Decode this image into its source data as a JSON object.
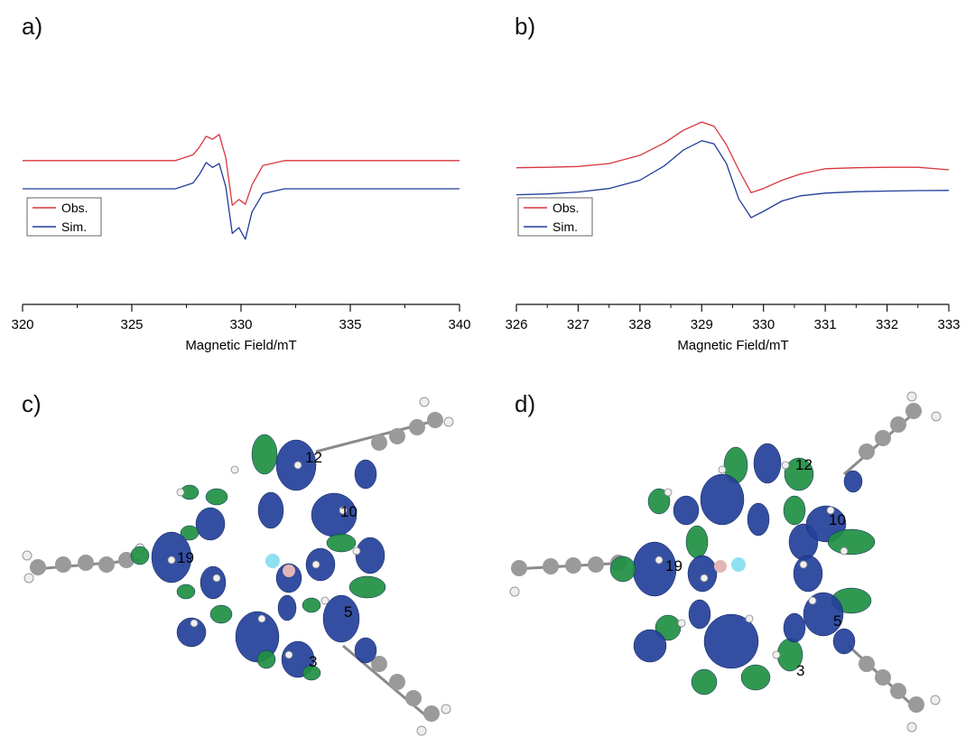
{
  "panels": {
    "a": {
      "label": "a)"
    },
    "b": {
      "label": "b)"
    },
    "c": {
      "label": "c)",
      "atoms": [
        "12",
        "10",
        "19",
        "5",
        "3"
      ]
    },
    "d": {
      "label": "d)",
      "atoms": [
        "12",
        "10",
        "19",
        "5",
        "3"
      ]
    }
  },
  "colors": {
    "observed": "#d9363e",
    "simulated": "#1f3d99",
    "orbital_blue": "#23409a",
    "orbital_green": "#1f8f43",
    "carbon": "#9a9a9a",
    "hydrogen": "#f0f0f0",
    "boron": "#e3b6b6",
    "fluorine": "#8fe0f0"
  },
  "chart_data": [
    {
      "type": "line",
      "xlabel": "Magnetic Field/mT",
      "ylabel": "",
      "xlim": [
        320,
        340
      ],
      "xticks": [
        "320",
        "325",
        "330",
        "335",
        "340"
      ],
      "legend": {
        "position": "left",
        "entries": [
          "Obs.",
          "Sim."
        ]
      },
      "series": [
        {
          "name": "Obs.",
          "color": "#d9363e",
          "x": [
            320,
            327.0,
            327.8,
            328.1,
            328.4,
            328.7,
            329.0,
            329.3,
            329.6,
            329.9,
            330.2,
            330.5,
            331.0,
            332.0,
            340
          ],
          "y": [
            1.45,
            1.45,
            1.75,
            2.15,
            2.7,
            2.55,
            2.8,
            1.6,
            -0.85,
            -0.55,
            -0.8,
            0.2,
            1.2,
            1.45,
            1.45
          ]
        },
        {
          "name": "Sim.",
          "color": "#1f3d99",
          "x": [
            320,
            327.0,
            327.8,
            328.1,
            328.4,
            328.7,
            329.0,
            329.3,
            329.6,
            329.9,
            330.2,
            330.5,
            331.0,
            332.0,
            340
          ],
          "y": [
            0,
            0,
            0.3,
            0.75,
            1.35,
            1.1,
            1.3,
            0.1,
            -2.3,
            -2.0,
            -2.6,
            -1.2,
            -0.25,
            0,
            0
          ]
        }
      ]
    },
    {
      "type": "line",
      "xlabel": "Magnetic Field/mT",
      "ylabel": "",
      "xlim": [
        326,
        333
      ],
      "xticks": [
        "326",
        "327",
        "328",
        "329",
        "330",
        "331",
        "332",
        "333"
      ],
      "legend": {
        "position": "left",
        "entries": [
          "Obs.",
          "Sim."
        ]
      },
      "series": [
        {
          "name": "Obs.",
          "color": "#d9363e",
          "x": [
            326,
            326.5,
            327,
            327.5,
            328,
            328.4,
            328.7,
            329.0,
            329.2,
            329.4,
            329.6,
            329.8,
            330.0,
            330.3,
            330.6,
            331,
            331.5,
            332,
            332.5,
            333
          ],
          "y": [
            0.1,
            0.12,
            0.16,
            0.3,
            0.7,
            1.3,
            1.9,
            2.3,
            2.1,
            1.2,
            0,
            -1.1,
            -0.9,
            -0.5,
            -0.2,
            0.05,
            0.1,
            0.12,
            0.12,
            0.0
          ]
        },
        {
          "name": "Sim.",
          "color": "#1f3d99",
          "x": [
            326,
            326.5,
            327,
            327.5,
            328,
            328.4,
            328.7,
            329.0,
            329.2,
            329.4,
            329.6,
            329.8,
            330.0,
            330.3,
            330.6,
            331,
            331.5,
            332,
            332.5,
            333
          ],
          "y": [
            -1.2,
            -1.16,
            -1.07,
            -0.9,
            -0.5,
            0.2,
            0.95,
            1.4,
            1.25,
            0.3,
            -1.4,
            -2.3,
            -2.0,
            -1.5,
            -1.25,
            -1.12,
            -1.05,
            -1.02,
            -1.0,
            -0.99
          ]
        }
      ]
    }
  ]
}
